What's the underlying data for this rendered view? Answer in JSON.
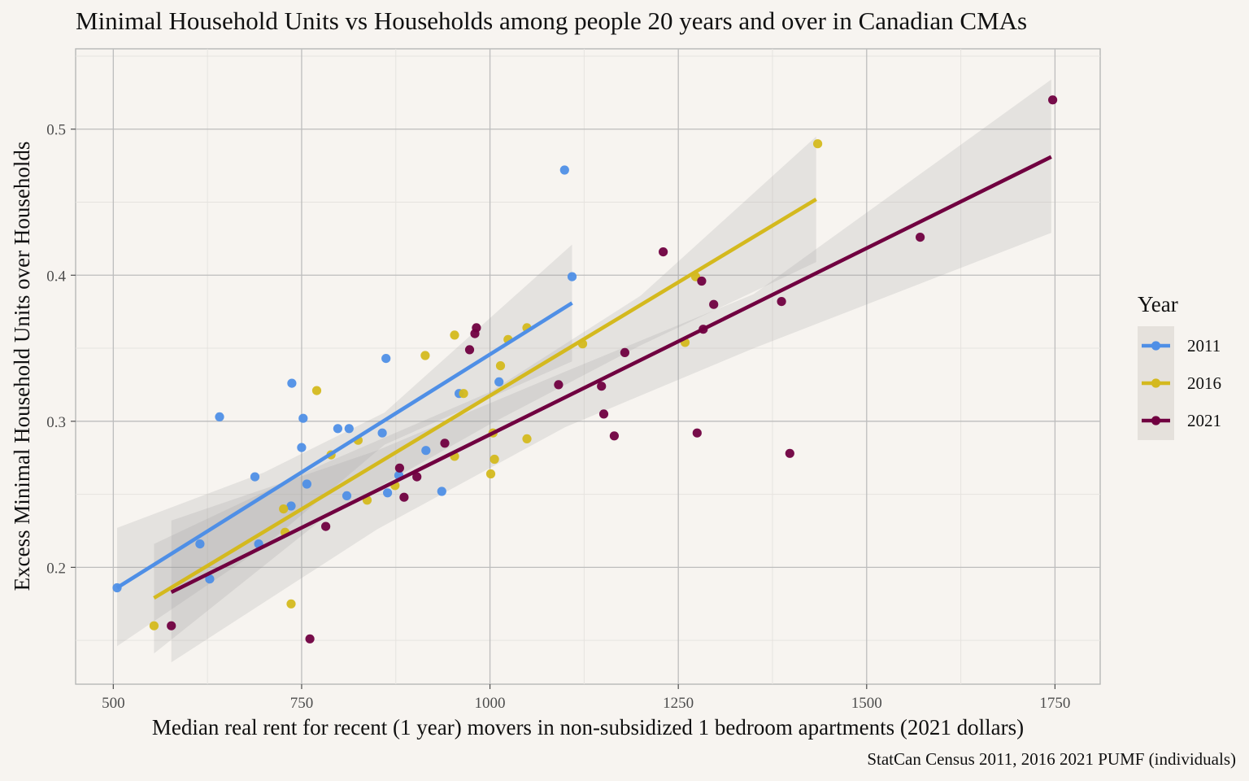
{
  "chart_data": {
    "type": "scatter",
    "title": "Minimal Household Units vs Households among people 20 years and over in Canadian CMAs",
    "xlabel": "Median real rent for recent (1 year) movers in non-subsidized 1 bedroom apartments (2021 dollars)",
    "ylabel": "Excess Minimal Household Units over Households",
    "caption": "StatCan Census 2011, 2016 2021 PUMF (individuals)",
    "xlim": [
      450,
      1810
    ],
    "ylim": [
      0.12,
      0.555
    ],
    "x_ticks": [
      500,
      750,
      1000,
      1250,
      1500,
      1750
    ],
    "x_tick_labels": [
      "500",
      "750",
      "1000",
      "1250",
      "1500",
      "1750"
    ],
    "y_ticks": [
      0.2,
      0.3,
      0.4,
      0.5
    ],
    "y_tick_labels": [
      "0.2",
      "0.3",
      "0.4",
      "0.5"
    ],
    "grid": true,
    "legend": {
      "title": "Year",
      "position": "right"
    },
    "series": [
      {
        "name": "2011",
        "color": "#4f8fe6",
        "points": [
          [
            505,
            0.186
          ],
          [
            615,
            0.216
          ],
          [
            628,
            0.192
          ],
          [
            641,
            0.303
          ],
          [
            688,
            0.262
          ],
          [
            693,
            0.216
          ],
          [
            736,
            0.242
          ],
          [
            737,
            0.326
          ],
          [
            750,
            0.282
          ],
          [
            752,
            0.302
          ],
          [
            757,
            0.257
          ],
          [
            798,
            0.295
          ],
          [
            810,
            0.249
          ],
          [
            813,
            0.295
          ],
          [
            857,
            0.292
          ],
          [
            862,
            0.343
          ],
          [
            864,
            0.251
          ],
          [
            879,
            0.263
          ],
          [
            915,
            0.28
          ],
          [
            936,
            0.252
          ],
          [
            959,
            0.319
          ],
          [
            1012,
            0.327
          ],
          [
            1099,
            0.472
          ],
          [
            1109,
            0.399
          ]
        ],
        "fit": {
          "x": [
            505,
            1109
          ],
          "y": [
            0.186,
            0.381
          ]
        },
        "band": {
          "x": [
            505,
            700,
            860,
            1109
          ],
          "lower": [
            0.146,
            0.214,
            0.284,
            0.341
          ],
          "upper": [
            0.227,
            0.265,
            0.306,
            0.421
          ]
        }
      },
      {
        "name": "2016",
        "color": "#d4b91e",
        "points": [
          [
            554,
            0.16
          ],
          [
            726,
            0.24
          ],
          [
            728,
            0.224
          ],
          [
            736,
            0.175
          ],
          [
            770,
            0.321
          ],
          [
            789,
            0.277
          ],
          [
            825,
            0.287
          ],
          [
            837,
            0.246
          ],
          [
            874,
            0.256
          ],
          [
            914,
            0.345
          ],
          [
            953,
            0.276
          ],
          [
            953,
            0.359
          ],
          [
            965,
            0.319
          ],
          [
            1001,
            0.264
          ],
          [
            1004,
            0.292
          ],
          [
            1006,
            0.274
          ],
          [
            1014,
            0.338
          ],
          [
            1024,
            0.356
          ],
          [
            1049,
            0.288
          ],
          [
            1049,
            0.364
          ],
          [
            1123,
            0.353
          ],
          [
            1259,
            0.354
          ],
          [
            1273,
            0.399
          ],
          [
            1435,
            0.49
          ]
        ],
        "fit": {
          "x": [
            554,
            1433
          ],
          "y": [
            0.179,
            0.452
          ]
        },
        "band": {
          "x": [
            554,
            780,
            1000,
            1200,
            1433
          ],
          "lower": [
            0.141,
            0.234,
            0.298,
            0.352,
            0.409
          ],
          "upper": [
            0.216,
            0.271,
            0.32,
            0.386,
            0.495
          ]
        }
      },
      {
        "name": "2021",
        "color": "#700040",
        "points": [
          [
            577,
            0.16
          ],
          [
            761,
            0.151
          ],
          [
            782,
            0.228
          ],
          [
            880,
            0.268
          ],
          [
            886,
            0.248
          ],
          [
            903,
            0.262
          ],
          [
            940,
            0.285
          ],
          [
            973,
            0.349
          ],
          [
            980,
            0.36
          ],
          [
            982,
            0.364
          ],
          [
            1091,
            0.325
          ],
          [
            1148,
            0.324
          ],
          [
            1151,
            0.305
          ],
          [
            1165,
            0.29
          ],
          [
            1179,
            0.347
          ],
          [
            1230,
            0.416
          ],
          [
            1275,
            0.292
          ],
          [
            1281,
            0.396
          ],
          [
            1283,
            0.363
          ],
          [
            1297,
            0.38
          ],
          [
            1387,
            0.382
          ],
          [
            1398,
            0.278
          ],
          [
            1571,
            0.426
          ],
          [
            1747,
            0.52
          ]
        ],
        "fit": {
          "x": [
            577,
            1745
          ],
          "y": [
            0.183,
            0.481
          ]
        },
        "band": {
          "x": [
            577,
            850,
            1100,
            1350,
            1745
          ],
          "lower": [
            0.135,
            0.226,
            0.296,
            0.35,
            0.429
          ],
          "upper": [
            0.232,
            0.28,
            0.334,
            0.387,
            0.534
          ]
        }
      }
    ]
  }
}
